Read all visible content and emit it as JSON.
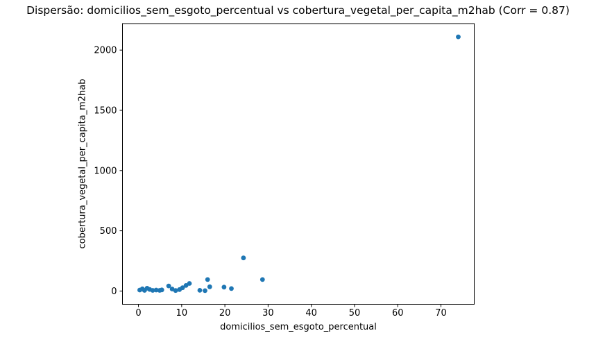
{
  "chart_data": {
    "type": "scatter",
    "title": "Dispersão: domicilios_sem_esgoto_percentual vs cobertura_vegetal_per_capita_m2hab (Corr = 0.87)",
    "xlabel": "domicilios_sem_esgoto_percentual",
    "ylabel": "cobertura_vegetal_per_capita_m2hab",
    "correlation": 0.87,
    "xlim": [
      -3.7,
      77.7
    ],
    "ylim": [
      -110,
      2220
    ],
    "x_ticks": [
      0,
      10,
      20,
      30,
      40,
      50,
      60,
      70
    ],
    "y_ticks": [
      0,
      500,
      1000,
      1500,
      2000
    ],
    "grid": false,
    "legend": "none",
    "marker_color": "#1f77b4",
    "frame_color": "#000000",
    "background_color": "#ffffff",
    "points": [
      [
        0.3,
        8
      ],
      [
        0.9,
        18
      ],
      [
        1.4,
        5
      ],
      [
        2.0,
        23
      ],
      [
        2.6,
        13
      ],
      [
        3.3,
        5
      ],
      [
        4.1,
        8
      ],
      [
        4.9,
        5
      ],
      [
        5.4,
        9
      ],
      [
        7.0,
        42
      ],
      [
        7.8,
        17
      ],
      [
        8.6,
        4
      ],
      [
        9.5,
        12
      ],
      [
        10.2,
        27
      ],
      [
        11.0,
        46
      ],
      [
        11.8,
        63
      ],
      [
        14.2,
        6
      ],
      [
        15.4,
        3
      ],
      [
        16.0,
        95
      ],
      [
        16.5,
        35
      ],
      [
        19.8,
        32
      ],
      [
        21.5,
        20
      ],
      [
        24.3,
        275
      ],
      [
        28.7,
        95
      ],
      [
        74.0,
        2110
      ]
    ]
  }
}
